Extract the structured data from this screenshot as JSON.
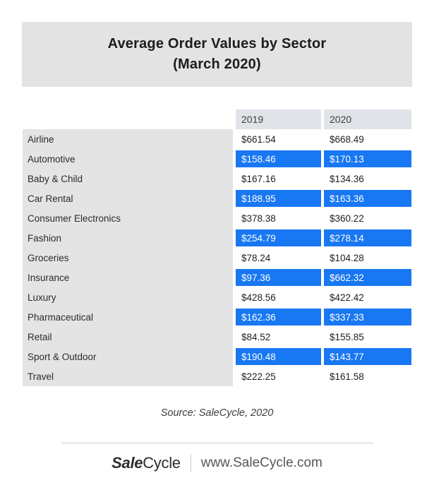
{
  "title": {
    "line1": "Average Order Values by Sector",
    "line2": "(March 2020)"
  },
  "table": {
    "columns": [
      "2019",
      "2020"
    ],
    "rows": [
      {
        "sector": "Airline",
        "y2019": "$661.54",
        "y2020": "$668.49",
        "highlight": false
      },
      {
        "sector": "Automotive",
        "y2019": "$158.46",
        "y2020": "$170.13",
        "highlight": true
      },
      {
        "sector": "Baby & Child",
        "y2019": "$167.16",
        "y2020": "$134.36",
        "highlight": false
      },
      {
        "sector": "Car Rental",
        "y2019": "$188.95",
        "y2020": "$163.36",
        "highlight": true
      },
      {
        "sector": "Consumer Electronics",
        "y2019": "$378.38",
        "y2020": "$360.22",
        "highlight": false
      },
      {
        "sector": "Fashion",
        "y2019": "$254.79",
        "y2020": "$278.14",
        "highlight": true
      },
      {
        "sector": "Groceries",
        "y2019": "$78.24",
        "y2020": "$104.28",
        "highlight": false
      },
      {
        "sector": "Insurance",
        "y2019": "$97.36",
        "y2020": "$662.32",
        "highlight": true
      },
      {
        "sector": "Luxury",
        "y2019": "$428.56",
        "y2020": "$422.42",
        "highlight": false
      },
      {
        "sector": "Pharmaceutical",
        "y2019": "$162.36",
        "y2020": "$337.33",
        "highlight": true
      },
      {
        "sector": "Retail",
        "y2019": "$84.52",
        "y2020": "$155.85",
        "highlight": false
      },
      {
        "sector": "Sport & Outdoor",
        "y2019": "$190.48",
        "y2020": "$143.77",
        "highlight": true
      },
      {
        "sector": "Travel",
        "y2019": "$222.25",
        "y2020": "$161.58",
        "highlight": false
      }
    ]
  },
  "source": "Source: SaleCycle, 2020",
  "footer": {
    "brand_bold": "Sale",
    "brand_regular": "Cycle",
    "website": "www.SaleCycle.com"
  },
  "colors": {
    "highlight_blue": "#1877f2",
    "title_bg": "#e3e3e3",
    "label_bg": "#e4e4e4",
    "header_bg": "#e0e3e8",
    "divider": "#ebebeb"
  },
  "chart_data": {
    "type": "table",
    "title": "Average Order Values by Sector (March 2020)",
    "categories": [
      "Airline",
      "Automotive",
      "Baby & Child",
      "Car Rental",
      "Consumer Electronics",
      "Fashion",
      "Groceries",
      "Insurance",
      "Luxury",
      "Pharmaceutical",
      "Retail",
      "Sport & Outdoor",
      "Travel"
    ],
    "series": [
      {
        "name": "2019",
        "values": [
          661.54,
          158.46,
          167.16,
          188.95,
          378.38,
          254.79,
          78.24,
          97.36,
          428.56,
          162.36,
          84.52,
          190.48,
          222.25
        ]
      },
      {
        "name": "2020",
        "values": [
          668.49,
          170.13,
          134.36,
          163.36,
          360.22,
          278.14,
          104.28,
          662.32,
          422.42,
          337.33,
          155.85,
          143.77,
          161.58
        ]
      }
    ],
    "unit": "USD",
    "source": "Source: SaleCycle, 2020"
  }
}
